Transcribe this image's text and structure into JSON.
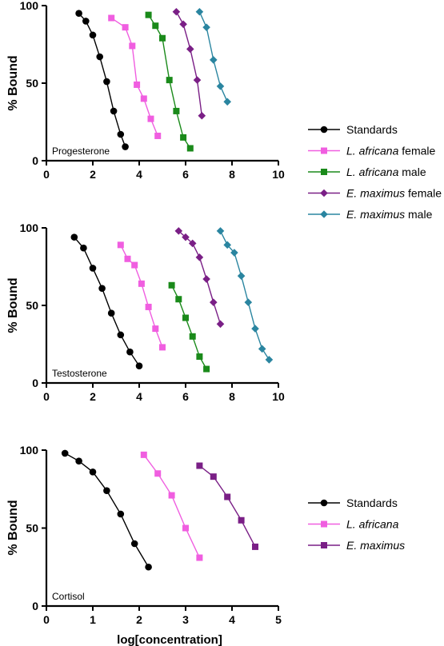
{
  "colors": {
    "standards": "#000000",
    "l_africana_female": "#f05ee0",
    "l_africana_male": "#1a8a1a",
    "e_maximus_female": "#7a1f86",
    "e_maximus_male": "#2a85a0"
  },
  "x_axis_label": "log[concentration]",
  "chart_data": [
    {
      "type": "line",
      "panel_label": "Progesterone",
      "ylabel": "% Bound",
      "xlim": [
        0,
        10
      ],
      "ylim": [
        0,
        100
      ],
      "x_ticks": [
        "0",
        "2",
        "4",
        "6",
        "8",
        "10"
      ],
      "y_ticks": [
        "0",
        "50",
        "100"
      ],
      "legend": {
        "position": "right",
        "entries": [
          {
            "series": "Standards",
            "text": "Standards",
            "italic": "",
            "rest": ""
          },
          {
            "series": "L. africana female",
            "text": "",
            "italic": "L. africana",
            "rest": " female"
          },
          {
            "series": "L. africana male",
            "text": "",
            "italic": "L. africana",
            "rest": " male"
          },
          {
            "series": "E. maximus female",
            "text": "",
            "italic": "E. maximus",
            "rest": " female"
          },
          {
            "series": "E. maximus male",
            "text": "",
            "italic": "E. maximus",
            "rest": " male"
          }
        ]
      },
      "series": [
        {
          "name": "Standards",
          "color": "#000000",
          "marker": "circle",
          "x": [
            1.4,
            1.7,
            2.0,
            2.3,
            2.6,
            2.9,
            3.2,
            3.4
          ],
          "y": [
            95,
            90,
            81,
            67,
            51,
            32,
            17,
            9
          ]
        },
        {
          "name": "L. africana female",
          "color": "#f05ee0",
          "marker": "square",
          "x": [
            2.8,
            3.4,
            3.7,
            3.9,
            4.2,
            4.5,
            4.8
          ],
          "y": [
            92,
            86,
            74,
            49,
            40,
            27,
            16
          ]
        },
        {
          "name": "L. africana male",
          "color": "#1a8a1a",
          "marker": "square",
          "x": [
            4.4,
            4.7,
            5.0,
            5.3,
            5.6,
            5.9,
            6.2
          ],
          "y": [
            94,
            87,
            79,
            52,
            32,
            15,
            8
          ]
        },
        {
          "name": "E. maximus female",
          "color": "#7a1f86",
          "marker": "diamond",
          "x": [
            5.6,
            5.9,
            6.2,
            6.5,
            6.7
          ],
          "y": [
            96,
            88,
            72,
            52,
            29
          ]
        },
        {
          "name": "E. maximus male",
          "color": "#2a85a0",
          "marker": "diamond",
          "x": [
            6.6,
            6.9,
            7.2,
            7.5,
            7.8
          ],
          "y": [
            96,
            86,
            65,
            48,
            38
          ]
        }
      ]
    },
    {
      "type": "line",
      "panel_label": "Testosterone",
      "ylabel": "% Bound",
      "xlim": [
        0,
        10
      ],
      "ylim": [
        0,
        100
      ],
      "x_ticks": [
        "0",
        "2",
        "4",
        "6",
        "8",
        "10"
      ],
      "y_ticks": [
        "0",
        "50",
        "100"
      ],
      "series": [
        {
          "name": "Standards",
          "color": "#000000",
          "marker": "circle",
          "x": [
            1.2,
            1.6,
            2.0,
            2.4,
            2.8,
            3.2,
            3.6,
            4.0
          ],
          "y": [
            94,
            87,
            74,
            61,
            45,
            31,
            20,
            11
          ]
        },
        {
          "name": "L. africana female",
          "color": "#f05ee0",
          "marker": "square",
          "x": [
            3.2,
            3.5,
            3.8,
            4.1,
            4.4,
            4.7,
            5.0
          ],
          "y": [
            89,
            80,
            76,
            64,
            49,
            35,
            23
          ]
        },
        {
          "name": "L. africana male",
          "color": "#1a8a1a",
          "marker": "square",
          "x": [
            5.4,
            5.7,
            6.0,
            6.3,
            6.6,
            6.9
          ],
          "y": [
            63,
            54,
            42,
            30,
            17,
            9
          ]
        },
        {
          "name": "E. maximus female",
          "color": "#7a1f86",
          "marker": "diamond",
          "x": [
            5.7,
            6.0,
            6.3,
            6.6,
            6.9,
            7.2,
            7.5
          ],
          "y": [
            98,
            94,
            90,
            81,
            67,
            52,
            38
          ]
        },
        {
          "name": "E. maximus male",
          "color": "#2a85a0",
          "marker": "diamond",
          "x": [
            7.5,
            7.8,
            8.1,
            8.4,
            8.7,
            9.0,
            9.3,
            9.6
          ],
          "y": [
            98,
            89,
            84,
            69,
            52,
            35,
            22,
            15
          ]
        }
      ]
    },
    {
      "type": "line",
      "panel_label": "Cortisol",
      "ylabel": "% Bound",
      "xlim": [
        0,
        5
      ],
      "ylim": [
        0,
        100
      ],
      "x_ticks": [
        "0",
        "1",
        "2",
        "3",
        "4",
        "5"
      ],
      "y_ticks": [
        "0",
        "50",
        "100"
      ],
      "xlabel": "log[concentration]",
      "legend": {
        "position": "right",
        "entries": [
          {
            "series": "Standards",
            "text": "Standards",
            "italic": "",
            "rest": ""
          },
          {
            "series": "L. africana",
            "text": "",
            "italic": "L. africana",
            "rest": ""
          },
          {
            "series": "E. maximus",
            "text": "",
            "italic": "E. maximus",
            "rest": ""
          }
        ]
      },
      "series": [
        {
          "name": "Standards",
          "color": "#000000",
          "marker": "circle",
          "x": [
            0.4,
            0.7,
            1.0,
            1.3,
            1.6,
            1.9,
            2.2
          ],
          "y": [
            98,
            93,
            86,
            74,
            59,
            40,
            25
          ]
        },
        {
          "name": "L. africana",
          "color": "#f05ee0",
          "marker": "square",
          "x": [
            2.1,
            2.4,
            2.7,
            3.0,
            3.3
          ],
          "y": [
            97,
            85,
            71,
            50,
            31
          ]
        },
        {
          "name": "E. maximus",
          "color": "#7a1f86",
          "marker": "square",
          "x": [
            3.3,
            3.6,
            3.9,
            4.2,
            4.5
          ],
          "y": [
            90,
            83,
            70,
            55,
            38
          ]
        }
      ]
    }
  ]
}
